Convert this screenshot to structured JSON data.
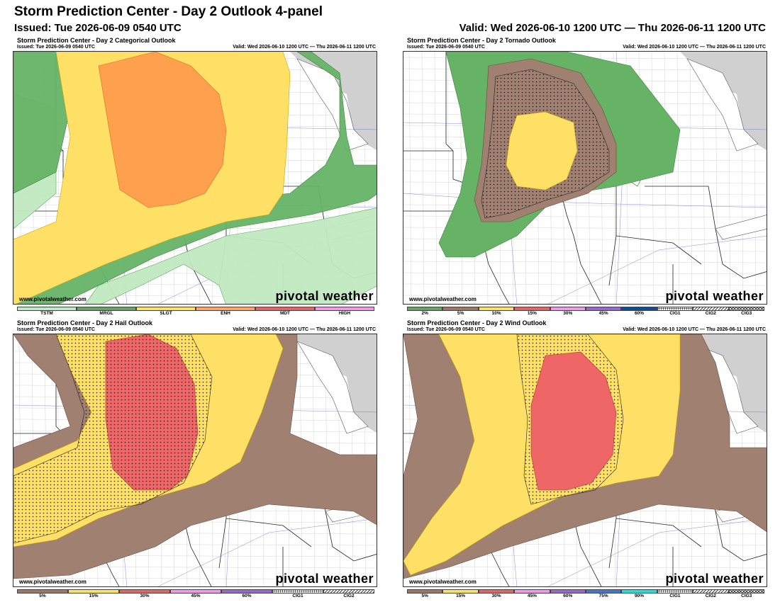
{
  "header": {
    "title": "Storm Prediction Center - Day 2 Outlook 4-panel",
    "issued": "Issued: Tue 2026-06-09 0540 UTC",
    "valid": "Valid: Wed 2026-06-10 1200 UTC — Thu 2026-06-11 1200 UTC"
  },
  "panels": [
    {
      "title": "Storm Prediction Center - Day 2 Categorical Outlook",
      "issued": "Issued: Tue 2026-06-09 0540 UTC",
      "valid": "Valid: Wed 2026-06-10 1200 UTC — Thu 2026-06-11 1200 UTC",
      "site": "www.pivotalweather.com",
      "brand": "pivotal weather",
      "legend": [
        {
          "label": "TSTM",
          "color": "#c1e9c1"
        },
        {
          "label": "MRGL",
          "color": "#66a366"
        },
        {
          "label": "SLGT",
          "color": "#ffe066"
        },
        {
          "label": "ENH",
          "color": "#ffa366"
        },
        {
          "label": "MDT",
          "color": "#e06666"
        },
        {
          "label": "HIGH",
          "color": "#ee99ee"
        }
      ]
    },
    {
      "title": "Storm Prediction Center - Day 2 Tornado Outlook",
      "issued": "Issued: Tue 2026-06-09 0540 UTC",
      "valid": "Valid: Wed 2026-06-10 1200 UTC — Thu 2026-06-11 1200 UTC",
      "site": "www.pivotalweather.com",
      "brand": "pivotal weather",
      "legend": [
        {
          "label": "2%",
          "color": "#66a366"
        },
        {
          "label": "5%",
          "color": "#9d7667"
        },
        {
          "label": "10%",
          "color": "#ffe066"
        },
        {
          "label": "15%",
          "color": "#e06666"
        },
        {
          "label": "30%",
          "color": "#ee99ee"
        },
        {
          "label": "45%",
          "color": "#9966cc"
        },
        {
          "label": "60%",
          "color": "#114d8c"
        },
        {
          "label": "CIG1",
          "color": "dots"
        },
        {
          "label": "CIG2",
          "color": "lines"
        },
        {
          "label": "CIG3",
          "color": "cross"
        }
      ]
    },
    {
      "title": "Storm Prediction Center - Day 2 Hail Outlook",
      "issued": "Issued: Tue 2026-06-09 0540 UTC",
      "valid": "Valid: Wed 2026-06-10 1200 UTC — Thu 2026-06-11 1200 UTC",
      "site": "www.pivotalweather.com",
      "brand": "pivotal weather",
      "legend": [
        {
          "label": "5%",
          "color": "#9d7667"
        },
        {
          "label": "15%",
          "color": "#ffe066"
        },
        {
          "label": "30%",
          "color": "#e06666"
        },
        {
          "label": "45%",
          "color": "#ee99ee"
        },
        {
          "label": "60%",
          "color": "#9966cc"
        },
        {
          "label": "CIG1",
          "color": "dots"
        },
        {
          "label": "CIG2",
          "color": "lines"
        }
      ]
    },
    {
      "title": "Storm Prediction Center - Day 2 Wind Outlook",
      "issued": "Issued: Tue 2026-06-09 0540 UTC",
      "valid": "Valid: Wed 2026-06-10 1200 UTC — Thu 2026-06-11 1200 UTC",
      "site": "www.pivotalweather.com",
      "brand": "pivotal weather",
      "legend": [
        {
          "label": "5%",
          "color": "#9d7667"
        },
        {
          "label": "15%",
          "color": "#ffe066"
        },
        {
          "label": "30%",
          "color": "#e06666"
        },
        {
          "label": "45%",
          "color": "#ee99ee"
        },
        {
          "label": "60%",
          "color": "#9966cc"
        },
        {
          "label": "75%",
          "color": "#4477cc"
        },
        {
          "label": "90%",
          "color": "#22dddd"
        },
        {
          "label": "CIG1",
          "color": "dots"
        },
        {
          "label": "CIG2",
          "color": "lines"
        },
        {
          "label": "CIG3",
          "color": "cross"
        }
      ]
    }
  ]
}
